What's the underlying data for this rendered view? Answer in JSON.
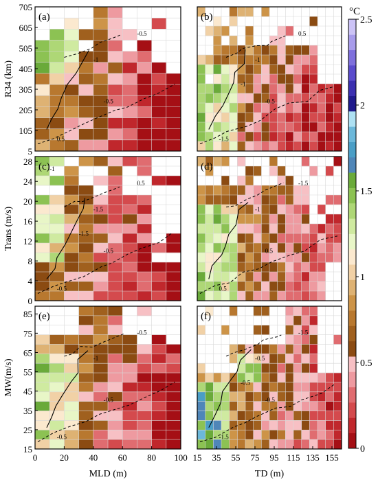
{
  "colorbar": {
    "unit": "°C",
    "ticks": [
      "0",
      "0.5",
      "1",
      "1.5",
      "2",
      "2.5"
    ],
    "range": [
      0,
      2.5
    ],
    "colors": [
      "#a50f15",
      "#c0272c",
      "#d44a4d",
      "#e06c70",
      "#ee9aa0",
      "#f7c0c4",
      "#8b4b12",
      "#a0601e",
      "#b8782f",
      "#cd9448",
      "#deb273",
      "#f1d1a6",
      "#fbe9cf",
      "#e8f6c7",
      "#cfeaa0",
      "#aed776",
      "#8cc253",
      "#6aaa3a",
      "#4f86b8",
      "#4a9ec6",
      "#6cb8da",
      "#aee1f3",
      "#1f1a8c",
      "#3b2fb0",
      "#5a4bcc",
      "#7e6fdc",
      "#a89ceb",
      "#ccc3f6"
    ]
  },
  "chart_data": [
    {
      "panel_label": "(a)",
      "type": "heatmap",
      "xlabel": "",
      "ylabel": "R34 (km)",
      "xlim": [
        0,
        100
      ],
      "ylim": [
        5,
        705
      ],
      "y_ticks": [
        "705",
        "605",
        "505",
        "405",
        "305",
        "205",
        "105",
        "5"
      ],
      "x_ticks": [],
      "contour_labels": [
        "-1",
        "-0.5",
        "0.5",
        "-0.5"
      ]
    },
    {
      "panel_label": "(b)",
      "type": "heatmap",
      "xlabel": "",
      "ylabel": "",
      "xlim": [
        15,
        165
      ],
      "ylim": [
        5,
        705
      ],
      "y_ticks": [],
      "x_ticks": [],
      "contour_labels": [
        "-1",
        "-0.5",
        "-1.5",
        "0.5",
        "-1"
      ]
    },
    {
      "panel_label": "(c)",
      "type": "heatmap",
      "xlabel": "",
      "ylabel": "Trans (m/s)",
      "xlim": [
        0,
        100
      ],
      "ylim": [
        0,
        29
      ],
      "y_ticks": [
        "28",
        "24",
        "20",
        "16",
        "12",
        "8",
        "4",
        "0"
      ],
      "x_ticks": [],
      "contour_labels": [
        "-1.5",
        "-0.5",
        "-0.5",
        "0.5",
        "-1.5",
        "-1"
      ]
    },
    {
      "panel_label": "(d)",
      "type": "heatmap",
      "xlabel": "",
      "ylabel": "",
      "xlim": [
        15,
        165
      ],
      "ylim": [
        0,
        29
      ],
      "y_ticks": [],
      "x_ticks": [],
      "contour_labels": [
        "-1",
        "0.5",
        "0.5",
        "-1.5"
      ]
    },
    {
      "panel_label": "(e)",
      "type": "heatmap",
      "xlabel": "MLD (m)",
      "ylabel": "MW(m/s)",
      "xlim": [
        0,
        100
      ],
      "ylim": [
        15,
        89
      ],
      "y_ticks": [
        "85",
        "75",
        "65",
        "55",
        "45",
        "35",
        "25",
        "15"
      ],
      "x_ticks": [
        "0",
        "20",
        "40",
        "60",
        "80",
        "100"
      ],
      "contour_labels": [
        "-1",
        "-0.5",
        "-0.5",
        "-0.5"
      ]
    },
    {
      "panel_label": "(f)",
      "type": "heatmap",
      "xlabel": "TD (m)",
      "ylabel": "",
      "xlim": [
        15,
        165
      ],
      "ylim": [
        15,
        89
      ],
      "y_ticks": [],
      "x_ticks": [
        "15",
        "35",
        "55",
        "75",
        "95",
        "115",
        "135",
        "155"
      ],
      "contour_labels": [
        "-0.5",
        "-0.5",
        "-1.5",
        "-1.5",
        "-0.5"
      ]
    }
  ]
}
